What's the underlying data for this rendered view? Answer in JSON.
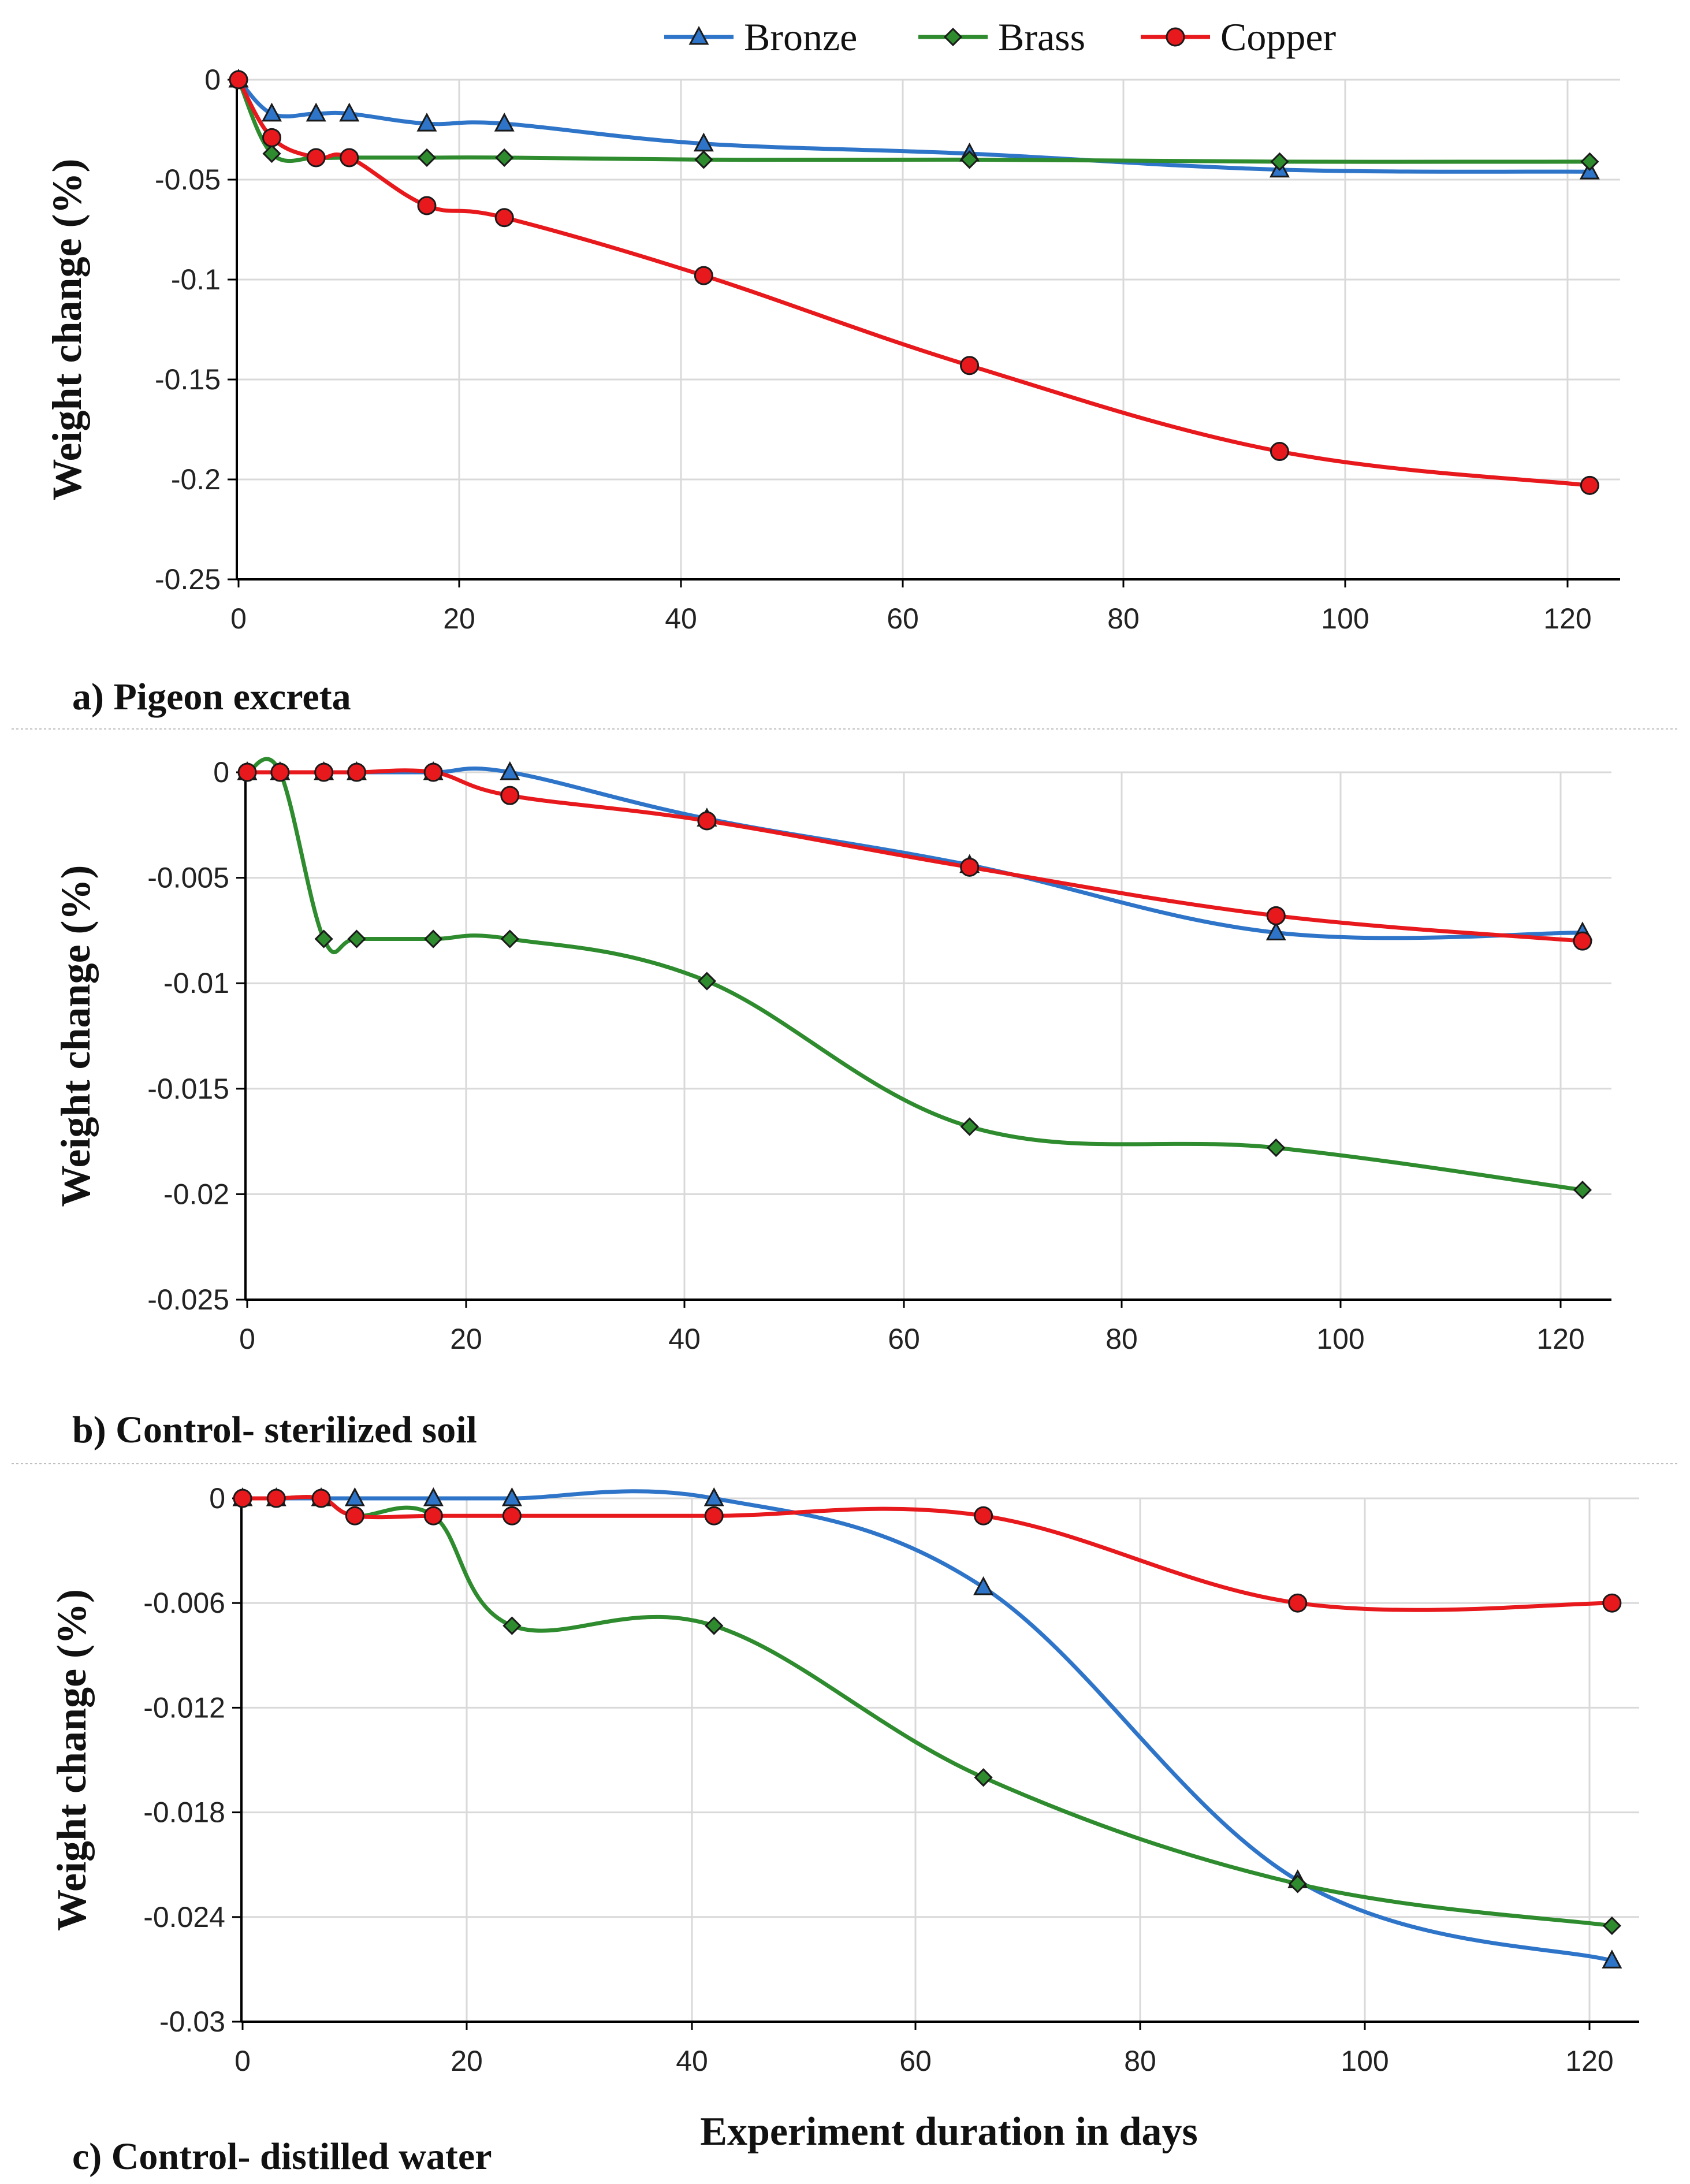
{
  "legend": [
    {
      "name": "Bronze",
      "color": "#2e75c9",
      "marker": "triangle-up"
    },
    {
      "name": "Brass",
      "color": "#2e8b2e",
      "marker": "diamond"
    },
    {
      "name": "Copper",
      "color": "#e8191d",
      "marker": "circle"
    }
  ],
  "xlabel": "Experiment duration in days",
  "chart_data": [
    {
      "type": "line",
      "title": "a) Pigeon excreta",
      "xlabel": "",
      "ylabel": "Weight change (%)",
      "xlim": [
        0,
        125
      ],
      "ylim": [
        -0.25,
        0
      ],
      "xticks": [
        "0",
        "20",
        "40",
        "60",
        "80",
        "100",
        "120"
      ],
      "yticks": [
        "0",
        "-0.05",
        "-0.1",
        "-0.15",
        "-0.2",
        "-0.25"
      ],
      "series": [
        {
          "name": "Bronze",
          "x": [
            0,
            3,
            7,
            10,
            17,
            24,
            42,
            66,
            94,
            122
          ],
          "y": [
            0,
            -0.017,
            -0.017,
            -0.017,
            -0.022,
            -0.022,
            -0.032,
            -0.037,
            -0.045,
            -0.046
          ]
        },
        {
          "name": "Brass",
          "x": [
            0,
            3,
            7,
            10,
            17,
            24,
            42,
            66,
            94,
            122
          ],
          "y": [
            0,
            -0.037,
            -0.039,
            -0.039,
            -0.039,
            -0.039,
            -0.04,
            -0.04,
            -0.041,
            -0.041
          ]
        },
        {
          "name": "Copper",
          "x": [
            0,
            3,
            7,
            10,
            17,
            24,
            42,
            66,
            94,
            122
          ],
          "y": [
            0,
            -0.029,
            -0.039,
            -0.039,
            -0.063,
            -0.069,
            -0.098,
            -0.143,
            -0.186,
            -0.203
          ]
        }
      ]
    },
    {
      "type": "line",
      "title": "b) Control- sterilized soil",
      "xlabel": "",
      "ylabel": "Weight change (%)",
      "xlim": [
        0,
        125
      ],
      "ylim": [
        -0.025,
        0
      ],
      "xticks": [
        "0",
        "20",
        "40",
        "60",
        "80",
        "100",
        "120"
      ],
      "yticks": [
        "0",
        "-0.005",
        "-0.01",
        "-0.015",
        "-0.02",
        "-0.025"
      ],
      "series": [
        {
          "name": "Bronze",
          "x": [
            0,
            3,
            7,
            10,
            17,
            24,
            42,
            66,
            94,
            122
          ],
          "y": [
            0,
            0,
            0,
            0,
            0,
            0,
            -0.0022,
            -0.0044,
            -0.0076,
            -0.0076
          ]
        },
        {
          "name": "Brass",
          "x": [
            0,
            3,
            7,
            10,
            17,
            24,
            42,
            66,
            94,
            122
          ],
          "y": [
            0,
            0,
            -0.0079,
            -0.0079,
            -0.0079,
            -0.0079,
            -0.0099,
            -0.0168,
            -0.0178,
            -0.0198
          ]
        },
        {
          "name": "Copper",
          "x": [
            0,
            3,
            7,
            10,
            17,
            24,
            42,
            66,
            94,
            122
          ],
          "y": [
            0,
            0,
            0,
            0,
            0,
            -0.0011,
            -0.0023,
            -0.0045,
            -0.0068,
            -0.008
          ]
        }
      ]
    },
    {
      "type": "line",
      "title": "c) Control- distilled water",
      "xlabel": "Experiment duration in days",
      "ylabel": "Weight change (%)",
      "xlim": [
        0,
        125
      ],
      "ylim": [
        -0.03,
        0
      ],
      "xticks": [
        "0",
        "20",
        "40",
        "60",
        "80",
        "100",
        "120"
      ],
      "yticks": [
        "0",
        "-0.006",
        "-0.012",
        "-0.018",
        "-0.024",
        "-0.03"
      ],
      "series": [
        {
          "name": "Bronze",
          "x": [
            0,
            3,
            7,
            10,
            17,
            24,
            42,
            66,
            94,
            122
          ],
          "y": [
            0,
            0,
            0,
            0,
            0,
            0,
            0,
            -0.0051,
            -0.0219,
            -0.0265
          ]
        },
        {
          "name": "Brass",
          "x": [
            0,
            3,
            7,
            10,
            17,
            24,
            42,
            66,
            94,
            122
          ],
          "y": [
            0,
            0,
            0,
            -0.001,
            -0.001,
            -0.0073,
            -0.0073,
            -0.016,
            -0.0221,
            -0.0245
          ]
        },
        {
          "name": "Copper",
          "x": [
            0,
            3,
            7,
            10,
            17,
            24,
            42,
            66,
            94,
            122
          ],
          "y": [
            0,
            0,
            0,
            -0.001,
            -0.001,
            -0.001,
            -0.001,
            -0.001,
            -0.006,
            -0.006
          ]
        }
      ]
    }
  ]
}
